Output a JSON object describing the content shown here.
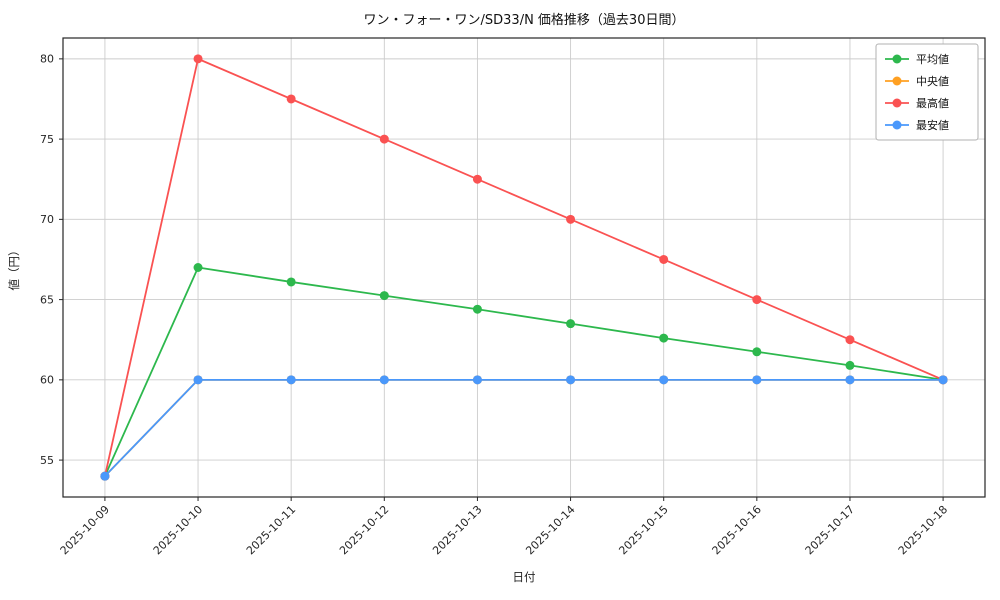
{
  "chart_data": {
    "type": "line",
    "title": "ワン・フォー・ワン/SD33/N 価格推移（過去30日間）",
    "xlabel": "日付",
    "ylabel": "値（円）",
    "x": [
      "2025-10-09",
      "2025-10-10",
      "2025-10-11",
      "2025-10-12",
      "2025-10-13",
      "2025-10-14",
      "2025-10-15",
      "2025-10-16",
      "2025-10-17",
      "2025-10-18"
    ],
    "series": [
      {
        "key": "average",
        "name": "平均値",
        "color": "#2db84d",
        "values": [
          54,
          67,
          66.1,
          65.25,
          64.4,
          63.5,
          62.6,
          61.75,
          60.9,
          60
        ]
      },
      {
        "key": "median",
        "name": "中央値",
        "color": "#ffa022",
        "values": [
          54,
          60,
          60,
          60,
          60,
          60,
          60,
          60,
          60,
          60
        ]
      },
      {
        "key": "max",
        "name": "最高値",
        "color": "#fa5252",
        "values": [
          54,
          80,
          77.5,
          75,
          72.5,
          70,
          67.5,
          65,
          62.5,
          60
        ]
      },
      {
        "key": "min",
        "name": "最安値",
        "color": "#4a98fb",
        "values": [
          54,
          60,
          60,
          60,
          60,
          60,
          60,
          60,
          60,
          60
        ]
      }
    ],
    "yticks": [
      55,
      60,
      65,
      70,
      75,
      80
    ],
    "ylim": [
      52.7,
      81.3
    ],
    "grid": true,
    "grid_color": "#cccccc",
    "axis_color": "#262626",
    "legend_position": "upper right",
    "background": "#ffffff"
  }
}
